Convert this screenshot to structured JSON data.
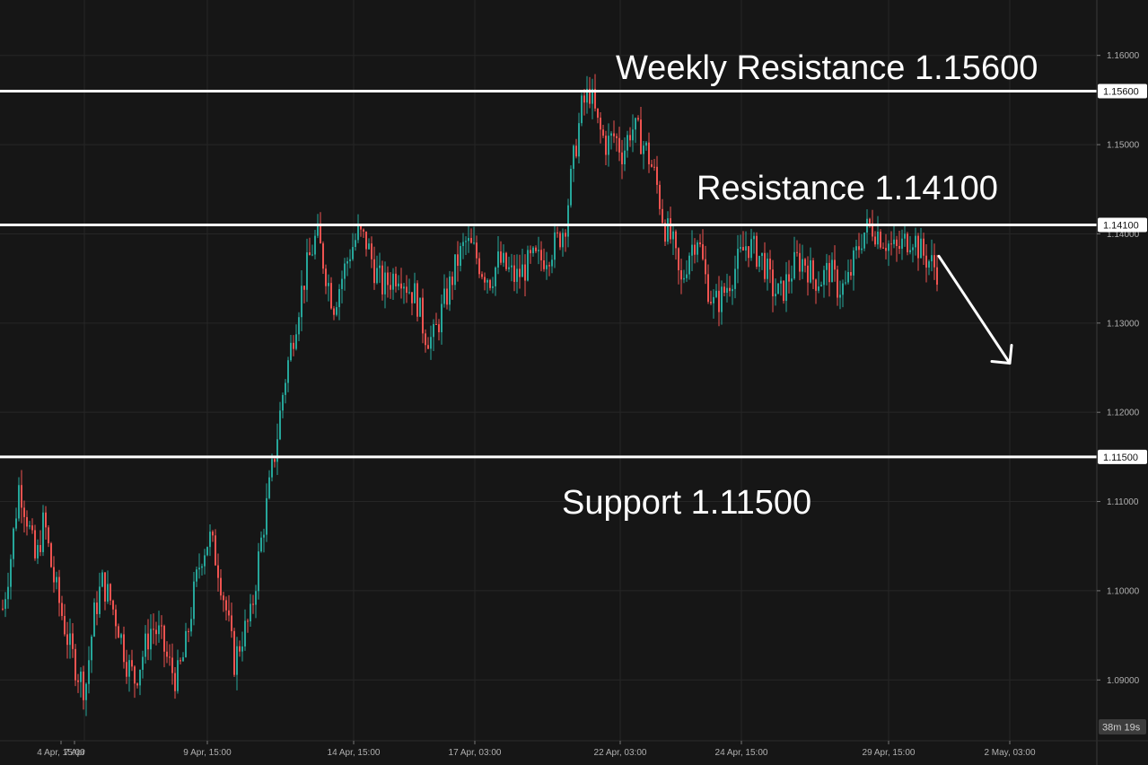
{
  "chart_data": {
    "type": "candlestick",
    "title": "",
    "xlabel": "",
    "ylabel": "",
    "ylim": [
      1.0855,
      1.1645
    ],
    "grid": true,
    "y_ticks": [
      "1.16000",
      "1.15000",
      "1.14000",
      "1.13000",
      "1.12000",
      "1.11000",
      "1.10000",
      "1.09000"
    ],
    "x_ticks": [
      "4 Apr, 15:00",
      "7 Apr",
      "9 Apr, 15:00",
      "14 Apr, 15:00",
      "17 Apr, 03:00",
      "22 Apr, 03:00",
      "24 Apr, 15:00",
      "29 Apr, 15:00",
      "2 May, 03:00"
    ],
    "levels": [
      {
        "label": "Weekly Resistance 1.15600",
        "value": 1.156,
        "tag": "1.15600"
      },
      {
        "label": "Resistance 1.14100",
        "value": 1.141,
        "tag": "1.14100"
      },
      {
        "label": "Support 1.11500",
        "value": 1.115,
        "tag": "1.11500"
      }
    ],
    "close_path": [
      1.098,
      1.104,
      1.112,
      1.108,
      1.103,
      1.108,
      1.102,
      1.098,
      1.094,
      1.091,
      1.089,
      1.097,
      1.101,
      1.099,
      1.096,
      1.092,
      1.09,
      1.093,
      1.096,
      1.095,
      1.092,
      1.09,
      1.093,
      1.099,
      1.104,
      1.106,
      1.103,
      1.098,
      1.092,
      1.095,
      1.097,
      1.104,
      1.11,
      1.116,
      1.123,
      1.128,
      1.133,
      1.137,
      1.14,
      1.136,
      1.132,
      1.135,
      1.138,
      1.14,
      1.139,
      1.136,
      1.134,
      1.135,
      1.136,
      1.134,
      1.133,
      1.129,
      1.128,
      1.131,
      1.134,
      1.137,
      1.139,
      1.138,
      1.136,
      1.135,
      1.137,
      1.136,
      1.135,
      1.136,
      1.137,
      1.137,
      1.138,
      1.139,
      1.141,
      1.148,
      1.154,
      1.156,
      1.152,
      1.15,
      1.151,
      1.149,
      1.152,
      1.151,
      1.149,
      1.146,
      1.141,
      1.139,
      1.134,
      1.138,
      1.14,
      1.135,
      1.132,
      1.133,
      1.135,
      1.137,
      1.139,
      1.138,
      1.137,
      1.134,
      1.133,
      1.135,
      1.137,
      1.137,
      1.135,
      1.135,
      1.136,
      1.134,
      1.134,
      1.137,
      1.14,
      1.141,
      1.14,
      1.139,
      1.138,
      1.139,
      1.14,
      1.138,
      1.137,
      1.136
    ],
    "projection": {
      "from": 1.1375,
      "to": 1.1255,
      "to_label": "2 May, 03:00"
    },
    "countdown": "38m 19s"
  }
}
